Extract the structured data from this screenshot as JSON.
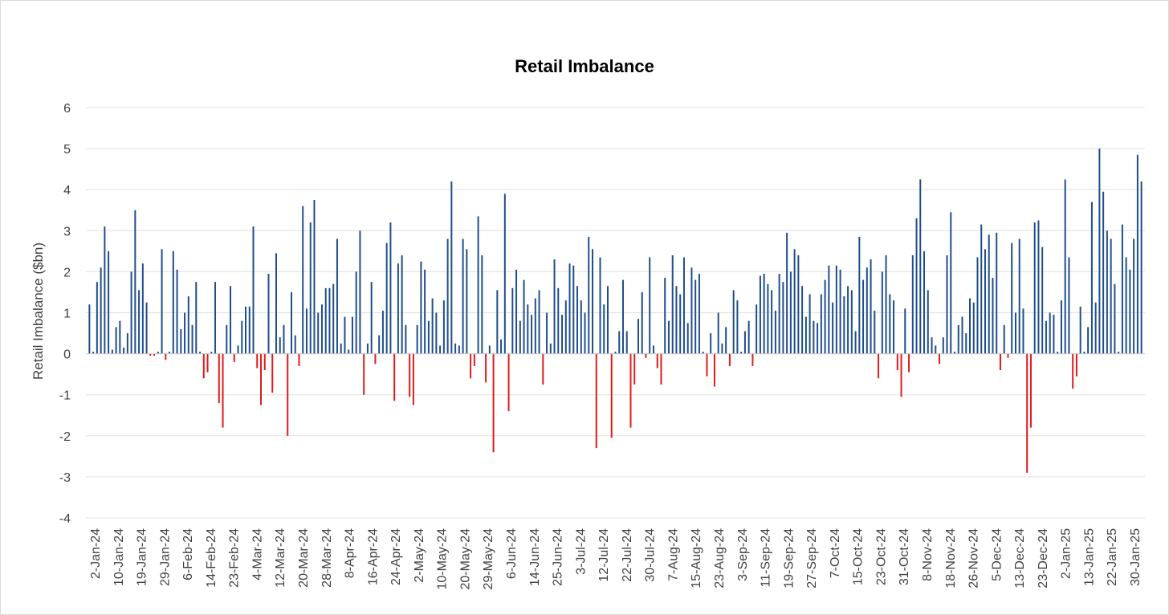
{
  "chart_data": {
    "type": "bar",
    "title": "Retail Imbalance",
    "xlabel": "",
    "ylabel": "Retail Imbalance ($bn)",
    "ylim": [
      -4,
      6
    ],
    "yticks": [
      -4,
      -3,
      -2,
      -1,
      0,
      1,
      2,
      3,
      4,
      5,
      6
    ],
    "grid": true,
    "legend": "none",
    "colors": {
      "positive": "#1f4e8c",
      "negative": "#e01b1b",
      "grid": "#e0e0e0"
    },
    "tick_labels": [
      "2-Jan-24",
      "10-Jan-24",
      "19-Jan-24",
      "29-Jan-24",
      "6-Feb-24",
      "14-Feb-24",
      "23-Feb-24",
      "4-Mar-24",
      "12-Mar-24",
      "20-Mar-24",
      "28-Mar-24",
      "8-Apr-24",
      "16-Apr-24",
      "24-Apr-24",
      "2-May-24",
      "10-May-24",
      "20-May-24",
      "29-May-24",
      "6-Jun-24",
      "14-Jun-24",
      "25-Jun-24",
      "3-Jul-24",
      "12-Jul-24",
      "22-Jul-24",
      "30-Jul-24",
      "7-Aug-24",
      "15-Aug-24",
      "23-Aug-24",
      "3-Sep-24",
      "11-Sep-24",
      "19-Sep-24",
      "27-Sep-24",
      "7-Oct-24",
      "15-Oct-24",
      "23-Oct-24",
      "31-Oct-24",
      "8-Nov-24",
      "18-Nov-24",
      "26-Nov-24",
      "5-Dec-24",
      "13-Dec-24",
      "23-Dec-24",
      "2-Jan-25",
      "13-Jan-25",
      "22-Jan-25",
      "30-Jan-25"
    ],
    "values": [
      1.2,
      0.05,
      1.75,
      2.1,
      3.1,
      2.5,
      0.1,
      0.65,
      0.8,
      0.15,
      0.5,
      2.0,
      3.5,
      1.55,
      2.2,
      1.25,
      -0.05,
      -0.05,
      0.05,
      2.55,
      -0.15,
      0.05,
      2.5,
      2.05,
      0.6,
      1.0,
      1.4,
      0.7,
      1.75,
      0.05,
      -0.6,
      -0.45,
      0.05,
      1.75,
      -1.2,
      -1.8,
      0.7,
      1.65,
      -0.2,
      0.2,
      0.8,
      1.15,
      1.15,
      3.1,
      -0.35,
      -1.25,
      -0.4,
      1.95,
      -0.95,
      2.45,
      0.4,
      0.7,
      -2.0,
      1.5,
      0.45,
      -0.3,
      3.6,
      1.1,
      3.2,
      3.75,
      1.0,
      1.2,
      1.6,
      1.6,
      1.7,
      2.8,
      0.25,
      0.9,
      0.1,
      0.9,
      2.0,
      3.0,
      -1.0,
      0.25,
      1.75,
      -0.25,
      0.45,
      1.05,
      2.7,
      3.2,
      -1.15,
      2.2,
      2.4,
      0.7,
      -1.05,
      -1.25,
      0.7,
      2.25,
      2.05,
      0.8,
      1.35,
      1.0,
      0.2,
      1.3,
      2.8,
      4.2,
      0.25,
      0.2,
      2.8,
      2.55,
      -0.6,
      -0.3,
      3.35,
      2.4,
      -0.7,
      0.2,
      -2.4,
      1.55,
      0.35,
      3.9,
      -1.4,
      1.6,
      2.05,
      0.8,
      1.8,
      1.2,
      0.95,
      1.35,
      1.55,
      -0.75,
      1.0,
      0.25,
      2.3,
      1.6,
      0.95,
      1.3,
      2.2,
      2.15,
      1.65,
      1.3,
      1.0,
      2.85,
      2.55,
      -2.3,
      2.35,
      1.2,
      1.65,
      -2.05,
      0.05,
      0.55,
      1.8,
      0.55,
      -1.8,
      -0.75,
      0.85,
      1.5,
      -0.1,
      2.35,
      0.2,
      -0.35,
      -0.75,
      1.85,
      0.8,
      2.4,
      1.65,
      1.45,
      2.35,
      0.75,
      2.1,
      1.8,
      1.95,
      0.05,
      -0.55,
      0.5,
      -0.8,
      1.0,
      0.25,
      0.65,
      -0.3,
      1.55,
      1.3,
      0.05,
      0.55,
      0.8,
      -0.3,
      1.2,
      1.9,
      1.95,
      1.7,
      1.55,
      1.05,
      1.95,
      1.75,
      2.95,
      2.0,
      2.55,
      2.4,
      1.65,
      0.9,
      1.45,
      0.8,
      0.75,
      1.45,
      1.8,
      2.15,
      1.25,
      2.15,
      2.05,
      1.4,
      1.65,
      1.55,
      0.55,
      2.85,
      1.8,
      2.1,
      2.3,
      1.05,
      -0.6,
      2.0,
      2.4,
      1.45,
      1.3,
      -0.4,
      -1.05,
      1.1,
      -0.45,
      2.4,
      3.3,
      4.25,
      2.5,
      1.55,
      0.4,
      0.2,
      -0.25,
      0.4,
      2.4,
      3.45,
      0.05,
      0.7,
      0.9,
      0.5,
      1.35,
      1.25,
      2.35,
      3.15,
      2.55,
      2.9,
      1.85,
      2.95,
      -0.4,
      0.7,
      -0.1,
      2.7,
      1.0,
      2.8,
      1.1,
      -2.9,
      -1.8,
      3.2,
      3.25,
      2.6,
      0.8,
      1.0,
      0.95,
      0.05,
      1.3,
      4.25,
      2.35,
      -0.85,
      -0.55,
      1.15,
      0.05,
      0.65,
      3.7,
      1.25,
      5.0,
      3.95,
      3.0,
      2.8,
      1.7,
      0.05,
      3.15,
      2.35,
      2.05,
      2.8,
      4.85,
      4.2
    ]
  }
}
